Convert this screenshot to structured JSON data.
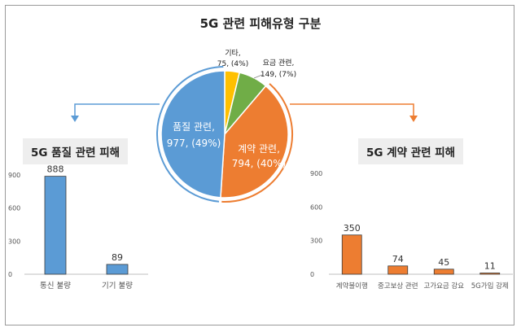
{
  "title": "5G 관련 피해유형 구분",
  "colors": {
    "quality": "#5b9bd5",
    "contract": "#ed7d31",
    "fee": "#70ad47",
    "other": "#ffc000",
    "bar_left": "#5b9bd5",
    "bar_right": "#ed7d31",
    "arrow_left": "#5b9bd5",
    "arrow_right": "#ed7d31"
  },
  "chart_data": [
    {
      "type": "pie",
      "title": "5G 관련 피해유형 구분",
      "slices": [
        {
          "label": "품질 관련,",
          "value": 977,
          "value_text": "977, (49%)",
          "color": "#5b9bd5"
        },
        {
          "label": "계약 관련,",
          "value": 794,
          "value_text": "794, (40%)",
          "color": "#ed7d31"
        },
        {
          "label": "요금 관련,",
          "value": 149,
          "value_text": "149, (7%)",
          "color": "#70ad47"
        },
        {
          "label": "기타,",
          "value": 75,
          "value_text": "75, (4%)",
          "color": "#ffc000"
        }
      ]
    },
    {
      "type": "bar",
      "title": "5G 품질 관련 피해",
      "categories": [
        "통신 불량",
        "기기 불량"
      ],
      "values": [
        888,
        89
      ],
      "ylim": [
        0,
        900
      ],
      "yticks": [
        0,
        300,
        600,
        900
      ],
      "grid": false
    },
    {
      "type": "bar",
      "title": "5G 계약 관련 피해",
      "categories": [
        "계약불이행",
        "중고보상 관련",
        "고가요금 강요",
        "5G가입 강제"
      ],
      "values": [
        350,
        74,
        45,
        11
      ],
      "ylim": [
        0,
        900
      ],
      "yticks": [
        0,
        300,
        600,
        900
      ],
      "grid": false
    }
  ]
}
